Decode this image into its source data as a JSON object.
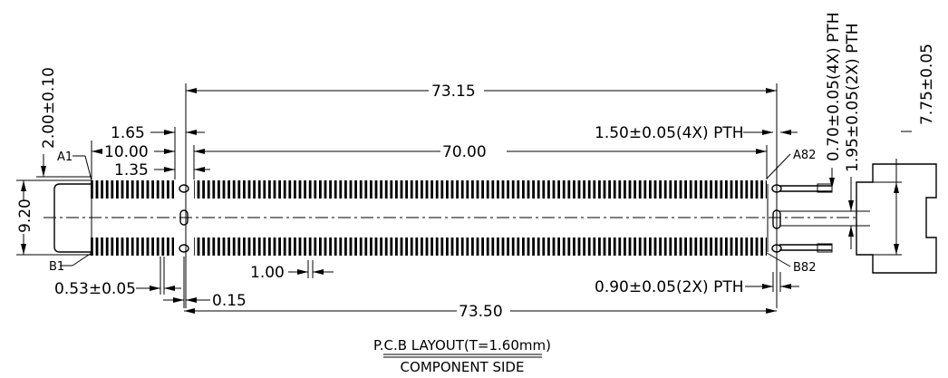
{
  "dimensions": {
    "overall_top": "73.15",
    "inner_pitch_span": "70.00",
    "pth_150": "1.50±0.05(4X)  PTH",
    "offset_165": "1.65",
    "offset_1000": "10.00",
    "offset_135": "1.35",
    "height_200": "2.00±0.10",
    "height_920": "9.20",
    "pth_070": "0.70±0.05(4X)  PTH",
    "pth_195": "1.95±0.05(2X)  PTH",
    "height_775": "7.75±0.05",
    "pad_053": "0.53±0.05",
    "pitch_100": "1.00",
    "gap_015": "0.15",
    "pth_090": "0.90±0.05(2X)  PTH",
    "overall_bottom": "73.50"
  },
  "pins": {
    "a1": "A1",
    "a82": "A82",
    "b1": "B1",
    "b82": "B82"
  },
  "caption": {
    "title": "P.C.B  LAYOUT(T=1.60mm)",
    "subtitle": "COMPONENT  SIDE"
  }
}
